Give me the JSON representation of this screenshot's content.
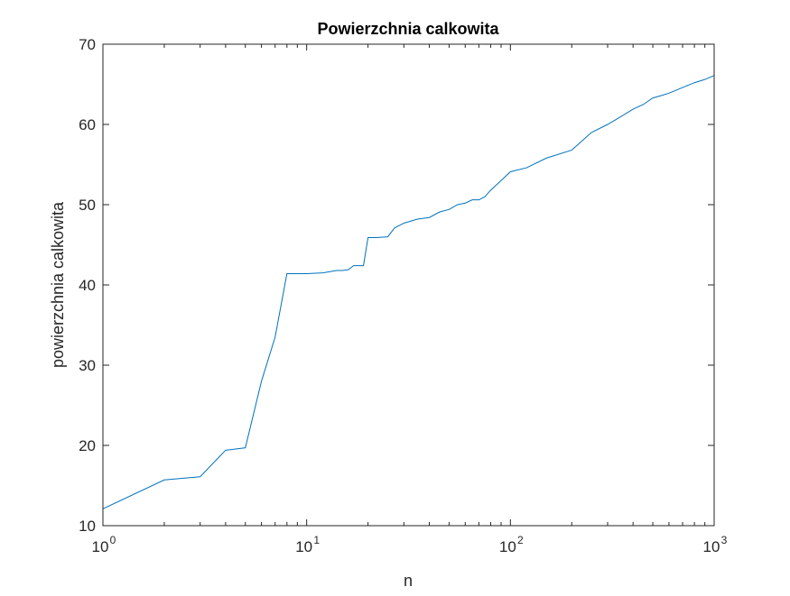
{
  "chart_data": {
    "type": "line",
    "title": "Powierzchnia calkowita",
    "xlabel": "n",
    "ylabel": "powierzchnia calkowita",
    "x_scale": "log",
    "xlim": [
      1,
      1000
    ],
    "ylim": [
      10,
      70
    ],
    "grid": false,
    "line_color": "#0072BD",
    "x_ticks": [
      {
        "base": "10",
        "exp": "0",
        "value": 1
      },
      {
        "base": "10",
        "exp": "1",
        "value": 10
      },
      {
        "base": "10",
        "exp": "2",
        "value": 100
      },
      {
        "base": "10",
        "exp": "3",
        "value": 1000
      }
    ],
    "y_ticks": [
      10,
      20,
      30,
      40,
      50,
      60,
      70
    ],
    "series": [
      {
        "x": [
          1,
          2,
          3,
          4,
          5,
          6,
          7,
          8,
          10,
          12,
          14,
          15,
          16,
          17,
          18,
          19,
          20,
          22,
          25,
          27,
          30,
          35,
          40,
          45,
          50,
          55,
          60,
          65,
          70,
          75,
          80,
          90,
          100,
          120,
          150,
          200,
          250,
          300,
          350,
          400,
          450,
          500,
          550,
          600,
          700,
          800,
          900,
          1000
        ],
        "y": [
          12.1,
          15.7,
          16.1,
          19.4,
          19.7,
          28.0,
          33.5,
          41.4,
          41.4,
          41.5,
          41.8,
          41.8,
          41.9,
          42.4,
          42.4,
          42.4,
          45.9,
          45.9,
          46.0,
          47.1,
          47.7,
          48.2,
          48.4,
          49.1,
          49.4,
          50.0,
          50.2,
          50.6,
          50.6,
          51.0,
          51.8,
          53.0,
          54.1,
          54.6,
          55.8,
          56.8,
          59.0,
          60.0,
          61.0,
          61.9,
          62.5,
          63.3,
          63.6,
          63.9,
          64.6,
          65.2,
          65.6,
          66.1
        ]
      }
    ]
  }
}
